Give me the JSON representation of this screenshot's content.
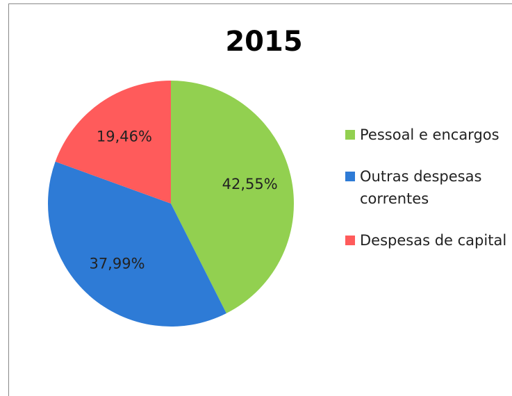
{
  "chart_data": {
    "type": "pie",
    "title": "2015",
    "categories": [
      "Pessoal e encargos",
      "Outras despesas correntes",
      "Despesas de capital"
    ],
    "values": [
      42.55,
      37.99,
      19.46
    ],
    "value_labels": [
      "42,55%",
      "37,99%",
      "19,46%"
    ],
    "colors": [
      "#92d050",
      "#2e7bd6",
      "#ff5b5b"
    ],
    "legend": "right"
  }
}
